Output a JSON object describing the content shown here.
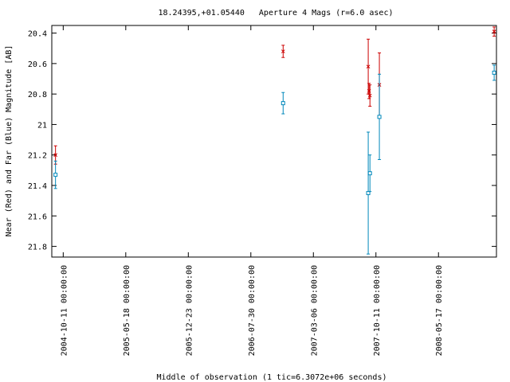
{
  "chart_data": {
    "type": "scatter",
    "title": "18.24395,+01.05440   Aperture 4 Mags (r=6.0 asec)",
    "xlabel": "Middle of observation (1 tic=6.3072e+06 seconds)",
    "ylabel": "Near (Red) and Far (Blue) Magnitude [AB]",
    "ylim": [
      21.87,
      20.35
    ],
    "y_inverted": true,
    "xlim": [
      "2004-09-01",
      "2008-12-06"
    ],
    "yticks": [
      "20.4",
      "20.6",
      "20.8",
      "21",
      "21.2",
      "21.4",
      "21.6",
      "21.8"
    ],
    "ytick_values": [
      20.4,
      20.6,
      20.8,
      21.0,
      21.2,
      21.4,
      21.6,
      21.8
    ],
    "xticks": [
      "2004-10-11 00:00:00",
      "2005-05-18 00:00:00",
      "2005-12-23 00:00:00",
      "2006-07-30 00:00:00",
      "2007-03-06 00:00:00",
      "2007-10-11 00:00:00",
      "2008-05-17 00:00:00"
    ],
    "xtick_values": [
      "2004-10-11",
      "2005-05-18",
      "2005-12-23",
      "2006-07-30",
      "2007-03-06",
      "2007-10-11",
      "2008-05-17"
    ],
    "grid": false,
    "legend": "none",
    "series": [
      {
        "color": "#cc0000",
        "marker": "x",
        "points": [
          {
            "x": "2004-09-14",
            "y": 21.2,
            "err": 0.06
          },
          {
            "x": "2006-11-20",
            "y": 20.52,
            "err": 0.04
          },
          {
            "x": "2007-09-14",
            "y": 20.62,
            "err": 0.18
          },
          {
            "x": "2007-09-17",
            "y": 20.78,
            "err": 0.05
          },
          {
            "x": "2007-09-20",
            "y": 20.81,
            "err": 0.07
          },
          {
            "x": "2007-10-23",
            "y": 20.74,
            "err": 0.21
          },
          {
            "x": "2008-11-28",
            "y": 20.39,
            "err": 0.03
          }
        ]
      },
      {
        "color": "#0088bb",
        "marker": "square",
        "points": [
          {
            "x": "2004-09-14",
            "y": 21.33,
            "err": 0.09
          },
          {
            "x": "2006-11-20",
            "y": 20.86,
            "err": 0.07
          },
          {
            "x": "2007-09-14",
            "y": 21.45,
            "err": 0.4
          },
          {
            "x": "2007-09-20",
            "y": 21.32,
            "err": 0.12
          },
          {
            "x": "2007-10-23",
            "y": 20.95,
            "err": 0.28
          },
          {
            "x": "2008-11-28",
            "y": 20.66,
            "err": 0.05
          }
        ]
      }
    ]
  }
}
